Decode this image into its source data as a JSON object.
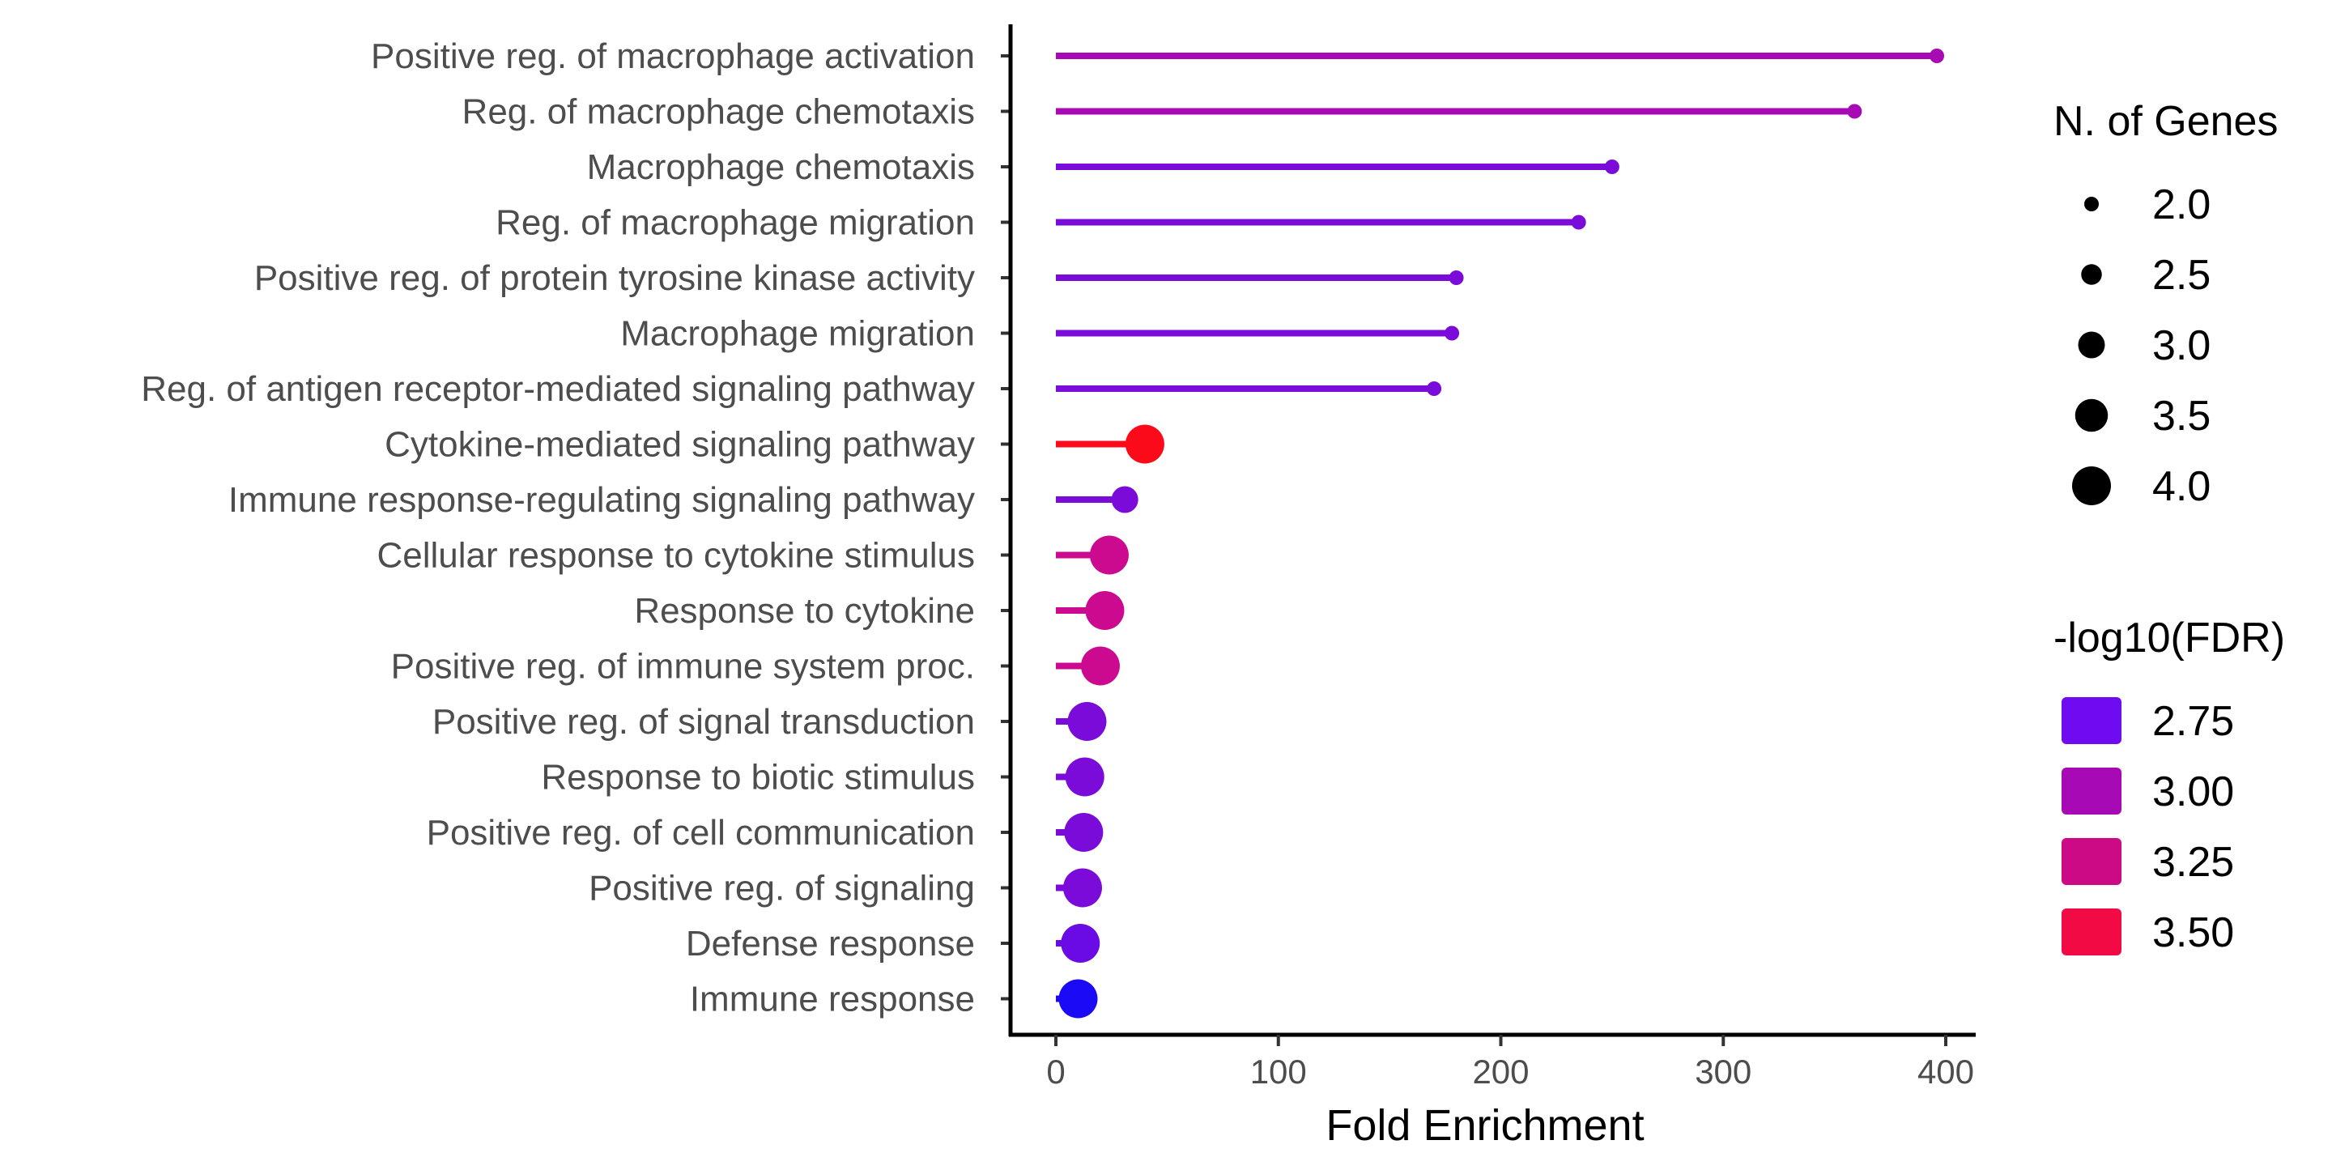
{
  "chart_data": {
    "type": "lollipop",
    "xlabel": "Fold Enrichment",
    "ylabel": "",
    "xlim": [
      0,
      400
    ],
    "x_ticks": [
      0,
      100,
      200,
      300,
      400
    ],
    "grid": false,
    "legend_position": "right",
    "categories": [
      "Positive reg. of macrophage activation",
      "Reg. of macrophage chemotaxis",
      "Macrophage chemotaxis",
      "Reg. of macrophage migration",
      "Positive reg. of protein tyrosine kinase activity",
      "Macrophage migration",
      "Reg. of antigen receptor-mediated signaling pathway",
      "Cytokine-mediated signaling pathway",
      "Immune response-regulating signaling pathway",
      "Cellular response to cytokine stimulus",
      "Response to cytokine",
      "Positive reg. of immune system proc.",
      "Positive reg. of signal transduction",
      "Response to biotic stimulus",
      "Positive reg. of cell communication",
      "Positive reg. of signaling",
      "Defense response",
      "Immune response"
    ],
    "fold_enrichment": [
      396,
      359,
      250,
      235,
      180,
      178,
      170,
      40,
      31,
      24,
      22,
      20,
      14,
      13,
      12.5,
      12,
      11,
      10
    ],
    "n_genes": [
      2,
      2,
      2,
      2,
      2,
      2,
      2,
      4,
      3,
      4,
      4,
      4,
      4,
      4,
      4,
      4,
      4,
      4
    ],
    "neg_log10_fdr": [
      3.0,
      3.0,
      2.85,
      2.85,
      2.85,
      2.85,
      2.85,
      3.6,
      2.8,
      3.2,
      3.2,
      3.2,
      2.8,
      2.8,
      2.8,
      2.8,
      2.75,
      2.6
    ],
    "point_colors": [
      "#a70ab5",
      "#a70ab5",
      "#7a0bd8",
      "#7a0bd8",
      "#7a0bd8",
      "#7a0bd8",
      "#7a0bd8",
      "#fb0a1a",
      "#7a0bd8",
      "#cc0a8f",
      "#cc0a8f",
      "#cc0a8f",
      "#7a0bd8",
      "#7a0bd8",
      "#7a0bd8",
      "#7a0bd8",
      "#6a0be5",
      "#1a0af5"
    ],
    "size_legend": {
      "title": "N. of Genes",
      "values": [
        "2.0",
        "2.5",
        "3.0",
        "3.5",
        "4.0"
      ]
    },
    "color_legend": {
      "title": "-log10(FDR)",
      "values": [
        "2.75",
        "3.00",
        "3.25",
        "3.50"
      ],
      "colors": [
        "#6e0bf0",
        "#a70ab5",
        "#cc0a85",
        "#f20a45"
      ]
    }
  }
}
